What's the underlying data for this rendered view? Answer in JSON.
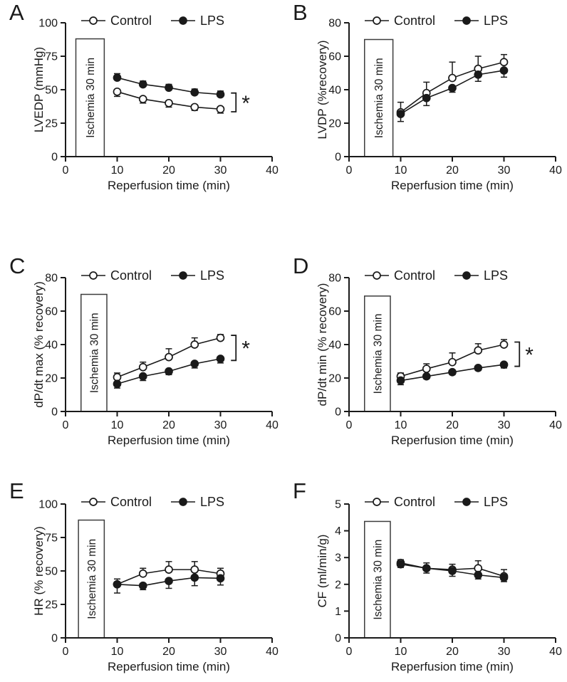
{
  "figure": {
    "background": "#ffffff",
    "ink_color": "#1a1a1a",
    "box_stroke_color": "#3d3d3d",
    "panel_letters": [
      "A",
      "B",
      "C",
      "D",
      "E",
      "F"
    ]
  },
  "chart_data": [
    {
      "panel": "A",
      "type": "line",
      "title": "",
      "xlabel": "Reperfusion time (min)",
      "ylabel": "LVEDP (mmHg)",
      "xlim": [
        0,
        40
      ],
      "ylim": [
        0,
        100
      ],
      "xticks": [
        0,
        10,
        20,
        30,
        40
      ],
      "yticks": [
        0,
        25,
        50,
        75,
        100
      ],
      "x": [
        10,
        15,
        20,
        25,
        30
      ],
      "series": [
        {
          "name": "Control",
          "marker": "open-circle",
          "values": [
            48.5,
            43,
            40,
            37,
            35.5
          ],
          "errors": [
            3.5,
            3,
            3,
            2.5,
            3
          ],
          "error_direction": "down"
        },
        {
          "name": "LPS",
          "marker": "filled-circle",
          "values": [
            59,
            54,
            51.5,
            48,
            46.5
          ],
          "errors": [
            3,
            2.5,
            2.5,
            2.5,
            2.5
          ],
          "error_direction": "up"
        }
      ],
      "ischemia_box": {
        "label": "Ischemia 30 min",
        "x_start": 2,
        "x_end": 7.5,
        "top": 88
      },
      "significance": {
        "label": "*",
        "x": 33,
        "y_top": 47.5,
        "y_bottom": 33.5
      },
      "legend_position": "top"
    },
    {
      "panel": "B",
      "type": "line",
      "title": "",
      "xlabel": "Reperfusion time (min)",
      "ylabel": "LVDP (%recovery)",
      "xlim": [
        0,
        40
      ],
      "ylim": [
        0,
        80
      ],
      "xticks": [
        0,
        10,
        20,
        30,
        40
      ],
      "yticks": [
        0,
        20,
        40,
        60,
        80
      ],
      "x": [
        10,
        15,
        20,
        25,
        30
      ],
      "series": [
        {
          "name": "Control",
          "marker": "open-circle",
          "values": [
            26.5,
            38,
            47,
            52.5,
            56.5
          ],
          "errors": [
            6,
            6.5,
            9.5,
            7.5,
            4.5
          ],
          "error_direction": "up"
        },
        {
          "name": "LPS",
          "marker": "filled-circle",
          "values": [
            25.5,
            35,
            41,
            49,
            51.5
          ],
          "errors": [
            4.5,
            4.5,
            2.5,
            4,
            4
          ],
          "error_direction": "down"
        }
      ],
      "ischemia_box": {
        "label": "Ischemia 30 min",
        "x_start": 3,
        "x_end": 8.5,
        "top": 70
      },
      "significance": null,
      "legend_position": "top"
    },
    {
      "panel": "C",
      "type": "line",
      "title": "",
      "xlabel": "Reperfusion time (min)",
      "ylabel": "dP/dt max (% recovery)",
      "xlim": [
        0,
        40
      ],
      "ylim": [
        0,
        80
      ],
      "xticks": [
        0,
        10,
        20,
        30,
        40
      ],
      "yticks": [
        0,
        20,
        40,
        60,
        80
      ],
      "x": [
        10,
        15,
        20,
        25,
        30
      ],
      "series": [
        {
          "name": "Control",
          "marker": "open-circle",
          "values": [
            20.5,
            26.5,
            32.5,
            40,
            44
          ],
          "errors": [
            2.5,
            3,
            5,
            4,
            2
          ],
          "error_direction": "up"
        },
        {
          "name": "LPS",
          "marker": "filled-circle",
          "values": [
            16.5,
            21,
            24,
            28.5,
            31.5
          ],
          "errors": [
            2.5,
            2.5,
            2,
            2.5,
            2.5
          ],
          "error_direction": "down"
        }
      ],
      "ischemia_box": {
        "label": "Ischemia 30 min",
        "x_start": 3,
        "x_end": 8,
        "top": 70
      },
      "significance": {
        "label": "*",
        "x": 33,
        "y_top": 45.5,
        "y_bottom": 30.5
      },
      "legend_position": "top"
    },
    {
      "panel": "D",
      "type": "line",
      "title": "",
      "xlabel": "Reperfusion time (min)",
      "ylabel": "dP/dt min (% recovery)",
      "xlim": [
        0,
        40
      ],
      "ylim": [
        0,
        80
      ],
      "xticks": [
        0,
        10,
        20,
        30,
        40
      ],
      "yticks": [
        0,
        20,
        40,
        60,
        80
      ],
      "x": [
        10,
        15,
        20,
        25,
        30
      ],
      "series": [
        {
          "name": "Control",
          "marker": "open-circle",
          "values": [
            21,
            25.5,
            29.5,
            36.5,
            40
          ],
          "errors": [
            2,
            3,
            5.5,
            4,
            3
          ],
          "error_direction": "up"
        },
        {
          "name": "LPS",
          "marker": "filled-circle",
          "values": [
            18.5,
            21,
            23.5,
            26,
            28
          ],
          "errors": [
            2.5,
            1.5,
            1.5,
            1.5,
            2
          ],
          "error_direction": "down"
        }
      ],
      "ischemia_box": {
        "label": "Ischemia 30 min",
        "x_start": 3,
        "x_end": 8,
        "top": 69
      },
      "significance": {
        "label": "*",
        "x": 33,
        "y_top": 41.5,
        "y_bottom": 27
      },
      "legend_position": "top"
    },
    {
      "panel": "E",
      "type": "line",
      "title": "",
      "xlabel": "Reperfusion time (min)",
      "ylabel": "HR (% recovery)",
      "xlim": [
        0,
        40
      ],
      "ylim": [
        0,
        100
      ],
      "xticks": [
        0,
        10,
        20,
        30,
        40
      ],
      "yticks": [
        0,
        25,
        50,
        75,
        100
      ],
      "x": [
        10,
        15,
        20,
        25,
        30
      ],
      "series": [
        {
          "name": "Control",
          "marker": "open-circle",
          "values": [
            40,
            48,
            51,
            51,
            48
          ],
          "errors": [
            4,
            4,
            6,
            6,
            4
          ],
          "error_direction": "up"
        },
        {
          "name": "LPS",
          "marker": "filled-circle",
          "values": [
            40,
            39,
            42.5,
            45,
            44.5
          ],
          "errors": [
            6.5,
            3,
            5.5,
            6,
            5
          ],
          "error_direction": "down"
        }
      ],
      "ischemia_box": {
        "label": "Ischemia 30 min",
        "x_start": 2.5,
        "x_end": 7.5,
        "top": 88
      },
      "significance": null,
      "legend_position": "top"
    },
    {
      "panel": "F",
      "type": "line",
      "title": "",
      "xlabel": "Reperfusion time (min)",
      "ylabel": "CF (ml/min/g)",
      "xlim": [
        0,
        40
      ],
      "ylim": [
        0,
        5
      ],
      "xticks": [
        0,
        10,
        20,
        30,
        40
      ],
      "yticks": [
        0,
        1,
        2,
        3,
        4,
        5
      ],
      "x": [
        10,
        15,
        20,
        25,
        30
      ],
      "series": [
        {
          "name": "Control",
          "marker": "open-circle",
          "values": [
            2.8,
            2.6,
            2.55,
            2.6,
            2.3
          ],
          "errors": [
            0.12,
            0.2,
            0.2,
            0.28,
            0.25
          ],
          "error_direction": "up"
        },
        {
          "name": "LPS",
          "marker": "filled-circle",
          "values": [
            2.75,
            2.6,
            2.5,
            2.35,
            2.25
          ],
          "errors": [
            0.12,
            0.18,
            0.2,
            0.15,
            0.15
          ],
          "error_direction": "down"
        }
      ],
      "ischemia_box": {
        "label": "Ischemia 30 min",
        "x_start": 3,
        "x_end": 8,
        "top": 4.35
      },
      "significance": null,
      "legend_position": "top"
    }
  ]
}
